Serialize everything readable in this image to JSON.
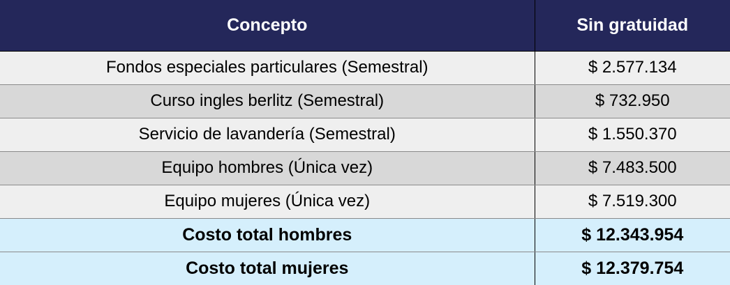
{
  "table": {
    "headers": {
      "concept": "Concepto",
      "price": "Sin gratuidad"
    },
    "rows": [
      {
        "concept": "Fondos especiales particulares (Semestral)",
        "price": "$ 2.577.134"
      },
      {
        "concept": "Curso ingles berlitz (Semestral)",
        "price": "$ 732.950"
      },
      {
        "concept": "Servicio de lavandería (Semestral)",
        "price": "$ 1.550.370"
      },
      {
        "concept": "Equipo hombres (Única vez)",
        "price": "$ 7.483.500"
      },
      {
        "concept": "Equipo mujeres (Única vez)",
        "price": "$ 7.519.300"
      }
    ],
    "totals": [
      {
        "concept": "Costo total hombres",
        "price": "$ 12.343.954"
      },
      {
        "concept": "Costo total mujeres",
        "price": "$ 12.379.754"
      }
    ]
  },
  "colors": {
    "header_bg": "#24275a",
    "header_text": "#ffffff",
    "row_light": "#efefef",
    "row_dark": "#d8d8d8",
    "total_bg": "#d5effc"
  }
}
